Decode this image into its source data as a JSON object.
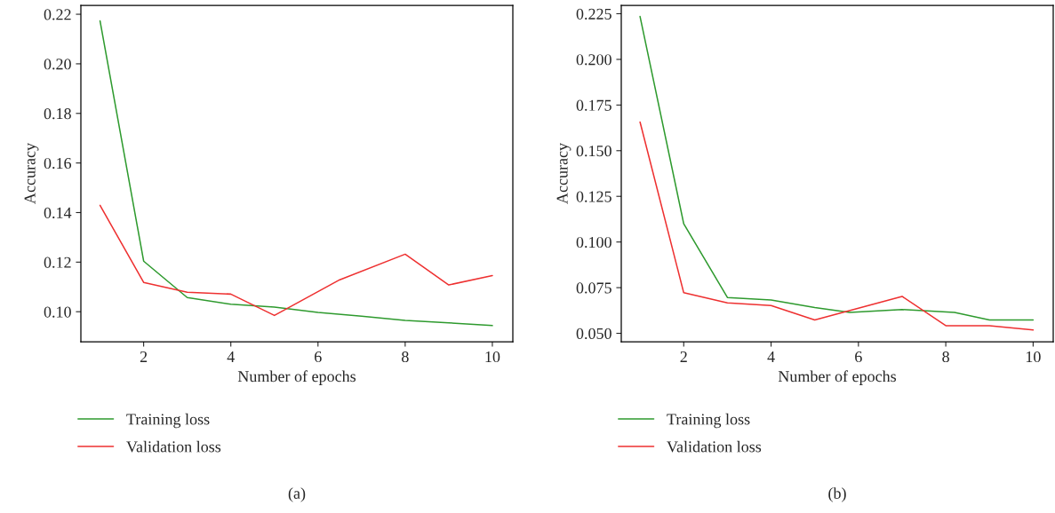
{
  "chart_data": [
    {
      "type": "line",
      "xlabel": "Number of epochs",
      "ylabel": "Accuracy",
      "xlim": [
        0.56,
        10.47
      ],
      "ylim": [
        0.0879,
        0.2236
      ],
      "xticks": [
        2,
        4,
        6,
        8,
        10
      ],
      "yticks": [
        {
          "value": 0.1,
          "label": "0.10"
        },
        {
          "value": 0.12,
          "label": "0.12"
        },
        {
          "value": 0.14,
          "label": "0.14"
        },
        {
          "value": 0.16,
          "label": "0.16"
        },
        {
          "value": 0.18,
          "label": "0.18"
        },
        {
          "value": 0.2,
          "label": "0.20"
        },
        {
          "value": 0.22,
          "label": "0.22"
        }
      ],
      "grid": false,
      "legend": "bottom",
      "annotations": [
        "(a)"
      ],
      "series": [
        {
          "name": "Training loss",
          "color": "#2e9a2e",
          "x": [
            1,
            2,
            3,
            4,
            5,
            6,
            7,
            8,
            9,
            10
          ],
          "values": [
            0.2173,
            0.1204,
            0.1057,
            0.103,
            0.1019,
            0.0997,
            0.0982,
            0.0965,
            0.0955,
            0.0944
          ]
        },
        {
          "name": "Validation loss",
          "color": "#ee3030",
          "x": [
            1,
            2,
            3,
            4,
            5,
            6.5,
            8,
            9,
            10
          ],
          "values": [
            0.1429,
            0.1118,
            0.1079,
            0.1071,
            0.0985,
            0.1129,
            0.1232,
            0.1108,
            0.1146
          ]
        }
      ]
    },
    {
      "type": "line",
      "xlabel": "Number of epochs",
      "ylabel": "Accuracy",
      "xlim": [
        0.57,
        10.46
      ],
      "ylim": [
        0.0454,
        0.2296
      ],
      "xticks": [
        2,
        4,
        6,
        8,
        10
      ],
      "yticks": [
        {
          "value": 0.05,
          "label": "0.050"
        },
        {
          "value": 0.075,
          "label": "0.075"
        },
        {
          "value": 0.1,
          "label": "0.100"
        },
        {
          "value": 0.125,
          "label": "0.125"
        },
        {
          "value": 0.15,
          "label": "0.150"
        },
        {
          "value": 0.175,
          "label": "0.175"
        },
        {
          "value": 0.2,
          "label": "0.200"
        },
        {
          "value": 0.225,
          "label": "0.225"
        }
      ],
      "grid": false,
      "legend": "bottom",
      "annotations": [
        "(b)"
      ],
      "series": [
        {
          "name": "Training loss",
          "color": "#2e9a2e",
          "x": [
            1,
            2,
            3,
            4,
            5,
            5.8,
            7,
            8.2,
            9,
            10
          ],
          "values": [
            0.2235,
            0.11,
            0.0696,
            0.0682,
            0.0641,
            0.0614,
            0.063,
            0.0614,
            0.0573,
            0.0573
          ]
        },
        {
          "name": "Validation loss",
          "color": "#ee3030",
          "x": [
            1,
            2,
            3,
            4,
            5,
            7,
            8,
            9,
            10
          ],
          "values": [
            0.1657,
            0.0722,
            0.0667,
            0.0652,
            0.0573,
            0.0702,
            0.0542,
            0.0542,
            0.0518
          ]
        }
      ]
    }
  ]
}
